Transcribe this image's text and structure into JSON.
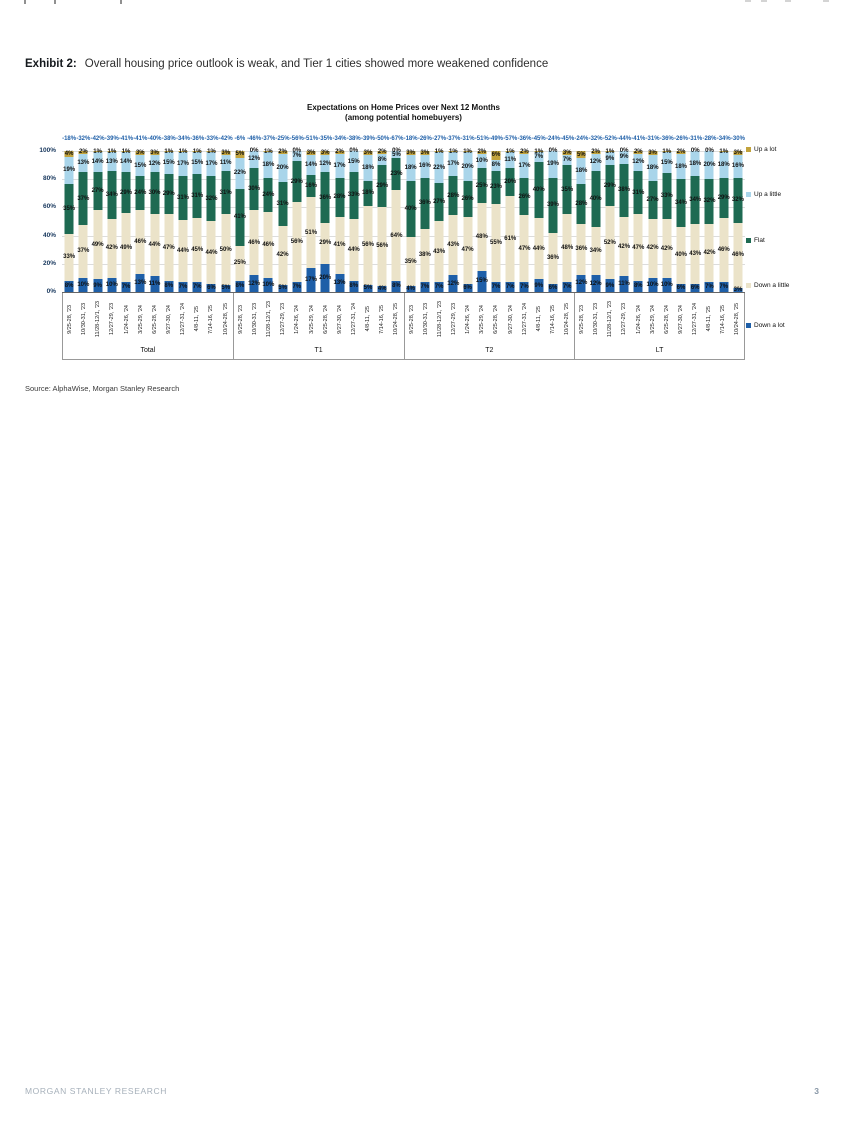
{
  "page": {
    "footer_left": "MORGAN STANLEY RESEARCH",
    "footer_page": "3"
  },
  "exhibit": {
    "label": "Exhibit 2:",
    "caption": "Overall housing price outlook is weak, and Tier 1 cities showed more weakened confidence"
  },
  "source_line": "Source: AlphaWise, Morgan Stanley Research",
  "legend": {
    "items": [
      {
        "label": "Up a lot",
        "color": "#c2a33c"
      },
      {
        "label": "Up a little",
        "color": "#a9d5ea"
      },
      {
        "label": "Flat",
        "color": "#1e6a52"
      },
      {
        "label": "Down a little",
        "color": "#ebe3c9"
      },
      {
        "label": "Down a lot",
        "color": "#1e5fa8"
      }
    ]
  },
  "chart_data": {
    "type": "bar",
    "stacked": true,
    "title": "Expectations on Home Prices over Next 12 Months",
    "subtitle": "(among potential homebuyers)",
    "xlabel": "",
    "ylabel": "",
    "ylim": [
      0,
      100
    ],
    "y_ticks": [
      "100%",
      "80%",
      "60%",
      "40%",
      "20%",
      "0%"
    ],
    "grid": true,
    "legend_position": "right",
    "series_order": [
      "Up a lot",
      "Up a little",
      "Flat",
      "Down a little",
      "Down a lot"
    ],
    "colors": {
      "up_a_lot": "#c2a33c",
      "up_a_little": "#a9d5ea",
      "flat": "#1e6a52",
      "down_a_little": "#ebe3c9",
      "down_a_lot": "#1e5fa8",
      "net_label": "#1e5fa8"
    },
    "x_dates": [
      "9/25-28, '23",
      "10/30-31, '23",
      "11/28-12/1, '23",
      "12/27-29, '23",
      "1/24-26, '24",
      "3/25-29, '24",
      "6/25-28, '24",
      "9/27-30, '24",
      "12/27-31, '24",
      "4/8-11, '25",
      "7/14-16, '25",
      "10/24-28, '25"
    ],
    "groups": [
      {
        "label": "Total",
        "net": [
          "-18%",
          "-32%",
          "-42%",
          "-39%",
          "-41%",
          "-41%",
          "-40%",
          "-38%",
          "-34%",
          "-36%",
          "-33%",
          "-42%"
        ],
        "bars": [
          [
            4,
            19,
            35,
            33,
            8
          ],
          [
            2,
            13,
            37,
            37,
            10
          ],
          [
            1,
            14,
            27,
            49,
            9
          ],
          [
            1,
            13,
            34,
            42,
            10
          ],
          [
            1,
            14,
            29,
            49,
            7
          ],
          [
            3,
            15,
            24,
            46,
            13
          ],
          [
            3,
            12,
            30,
            44,
            11
          ],
          [
            1,
            15,
            29,
            47,
            8
          ],
          [
            1,
            17,
            31,
            44,
            7
          ],
          [
            1,
            15,
            31,
            45,
            7
          ],
          [
            1,
            17,
            32,
            44,
            6
          ],
          [
            3,
            11,
            31,
            50,
            5
          ]
        ]
      },
      {
        "label": "T1",
        "net": [
          "-6%",
          "-46%",
          "-37%",
          "-25%",
          "-56%",
          "-51%",
          "-35%",
          "-34%",
          "-38%",
          "-39%",
          "-50%",
          "-67%"
        ],
        "bars": [
          [
            5,
            22,
            41,
            25,
            8
          ],
          [
            0,
            12,
            30,
            46,
            12
          ],
          [
            1,
            18,
            24,
            46,
            10
          ],
          [
            2,
            20,
            31,
            42,
            5
          ],
          [
            0,
            7,
            29,
            56,
            7
          ],
          [
            3,
            14,
            16,
            51,
            17
          ],
          [
            3,
            12,
            36,
            29,
            20
          ],
          [
            2,
            17,
            28,
            41,
            13
          ],
          [
            0,
            15,
            33,
            44,
            8
          ],
          [
            3,
            18,
            18,
            56,
            5
          ],
          [
            2,
            8,
            29,
            56,
            4
          ],
          [
            0,
            5,
            23,
            64,
            8
          ]
        ]
      },
      {
        "label": "T2",
        "net": [
          "-18%",
          "-26%",
          "-27%",
          "-37%",
          "-31%",
          "-51%",
          "-49%",
          "-57%",
          "-36%",
          "-45%",
          "-24%",
          "-45%"
        ],
        "bars": [
          [
            3,
            18,
            40,
            35,
            4
          ],
          [
            3,
            16,
            36,
            38,
            7
          ],
          [
            1,
            22,
            27,
            43,
            7
          ],
          [
            1,
            17,
            28,
            43,
            12
          ],
          [
            1,
            20,
            26,
            47,
            6
          ],
          [
            2,
            10,
            25,
            48,
            15
          ],
          [
            6,
            8,
            23,
            55,
            7
          ],
          [
            1,
            11,
            20,
            61,
            7
          ],
          [
            2,
            17,
            26,
            47,
            7
          ],
          [
            1,
            7,
            40,
            44,
            9
          ],
          [
            0,
            19,
            39,
            36,
            6
          ],
          [
            3,
            7,
            35,
            48,
            7
          ]
        ]
      },
      {
        "label": "LT",
        "net": [
          "-24%",
          "-32%",
          "-52%",
          "-44%",
          "-41%",
          "-31%",
          "-36%",
          "-26%",
          "-31%",
          "-28%",
          "-34%",
          "-30%"
        ],
        "bars": [
          [
            5,
            18,
            28,
            36,
            12
          ],
          [
            2,
            12,
            40,
            34,
            12
          ],
          [
            1,
            9,
            29,
            52,
            9
          ],
          [
            0,
            9,
            38,
            42,
            11
          ],
          [
            2,
            12,
            31,
            47,
            8
          ],
          [
            3,
            18,
            27,
            42,
            10
          ],
          [
            1,
            15,
            33,
            42,
            10
          ],
          [
            2,
            18,
            34,
            40,
            6
          ],
          [
            0,
            18,
            34,
            43,
            6
          ],
          [
            0,
            20,
            32,
            42,
            7
          ],
          [
            1,
            18,
            29,
            46,
            7
          ],
          [
            3,
            16,
            32,
            46,
            3
          ]
        ]
      }
    ]
  }
}
